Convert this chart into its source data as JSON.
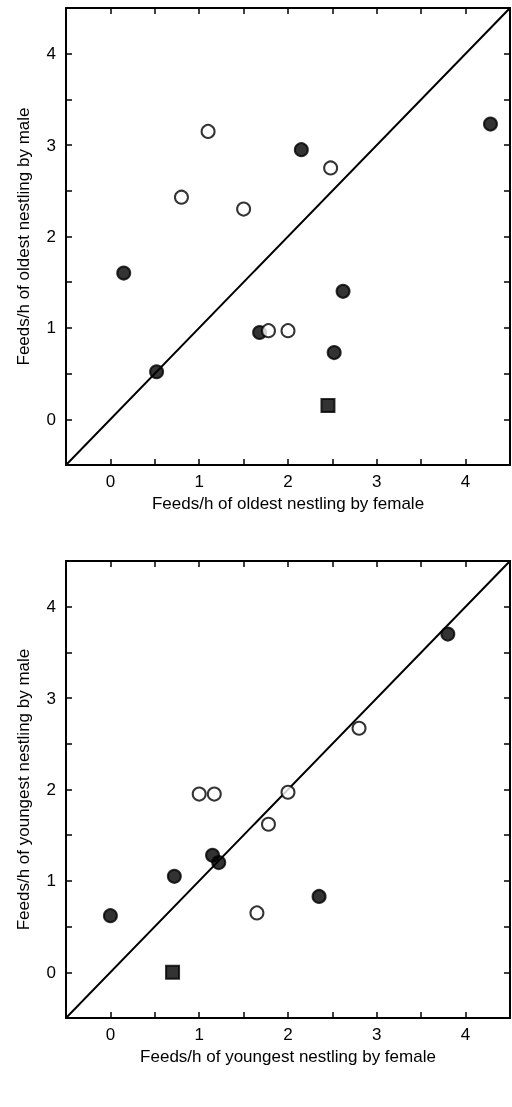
{
  "chart_data": [
    {
      "type": "scatter",
      "xlabel": "Feeds/h of oldest nestling by female",
      "ylabel": "Feeds/h of oldest nestling by male",
      "xlim": [
        -0.5,
        4.5
      ],
      "ylim": [
        -0.5,
        4.5
      ],
      "xticks": [
        0,
        {
          "value": 0.5,
          "label": null
        },
        1,
        {
          "value": 1.5,
          "label": null
        },
        2,
        {
          "value": 2.5,
          "label": null
        },
        3,
        {
          "value": 3.5,
          "label": null
        },
        4
      ],
      "yticks": [
        0,
        {
          "value": 0.5,
          "label": null
        },
        1,
        {
          "value": 1.5,
          "label": null
        },
        2,
        {
          "value": 2.5,
          "label": null
        },
        3,
        {
          "value": 3.5,
          "label": null
        },
        4
      ],
      "grid": false,
      "series": [
        {
          "type": "line",
          "color": "#000000",
          "marker": "none",
          "line_style": "solid",
          "x": [
            -0.5,
            4.5
          ],
          "values": [
            -0.5,
            4.5
          ]
        },
        {
          "color": "#000000",
          "marker": "circle",
          "x": [
            0.15,
            0.52,
            1.68,
            2.15,
            2.52,
            2.62,
            4.28
          ],
          "values": [
            1.6,
            0.52,
            0.95,
            2.95,
            0.73,
            1.4,
            3.23
          ]
        },
        {
          "color": "#ffffff",
          "marker": "circle",
          "x": [
            0.8,
            1.1,
            1.5,
            1.78,
            2.0,
            2.48
          ],
          "values": [
            2.43,
            3.15,
            2.3,
            0.97,
            0.97,
            2.75
          ]
        },
        {
          "color": "#000000",
          "marker": "square",
          "x": [
            2.45
          ],
          "values": [
            0.15
          ]
        }
      ]
    },
    {
      "type": "scatter",
      "xlabel": "Feeds/h of youngest nestling by female",
      "ylabel": "Feeds/h of youngest nestling by male",
      "xlim": [
        -0.5,
        4.5
      ],
      "ylim": [
        -0.5,
        4.5
      ],
      "xticks": [
        0,
        {
          "value": 0.5,
          "label": null
        },
        1,
        {
          "value": 1.5,
          "label": null
        },
        2,
        {
          "value": 2.5,
          "label": null
        },
        3,
        {
          "value": 3.5,
          "label": null
        },
        4
      ],
      "yticks": [
        0,
        {
          "value": 0.5,
          "label": null
        },
        1,
        {
          "value": 1.5,
          "label": null
        },
        2,
        {
          "value": 2.5,
          "label": null
        },
        3,
        {
          "value": 3.5,
          "label": null
        },
        4
      ],
      "grid": false,
      "series": [
        {
          "type": "line",
          "color": "#000000",
          "marker": "none",
          "line_style": "solid",
          "x": [
            -0.5,
            4.5
          ],
          "values": [
            -0.5,
            4.5
          ]
        },
        {
          "color": "#000000",
          "marker": "circle",
          "x": [
            0.0,
            0.72,
            1.15,
            1.22,
            2.35,
            3.8
          ],
          "values": [
            0.62,
            1.05,
            1.28,
            1.2,
            0.83,
            3.7
          ]
        },
        {
          "color": "#ffffff",
          "marker": "circle",
          "x": [
            1.0,
            1.17,
            2.0,
            2.8,
            1.78,
            1.65
          ],
          "values": [
            1.95,
            1.95,
            1.97,
            2.67,
            1.62,
            0.65
          ]
        },
        {
          "color": "#000000",
          "marker": "square",
          "x": [
            0.7
          ],
          "values": [
            0.0
          ]
        }
      ]
    }
  ]
}
